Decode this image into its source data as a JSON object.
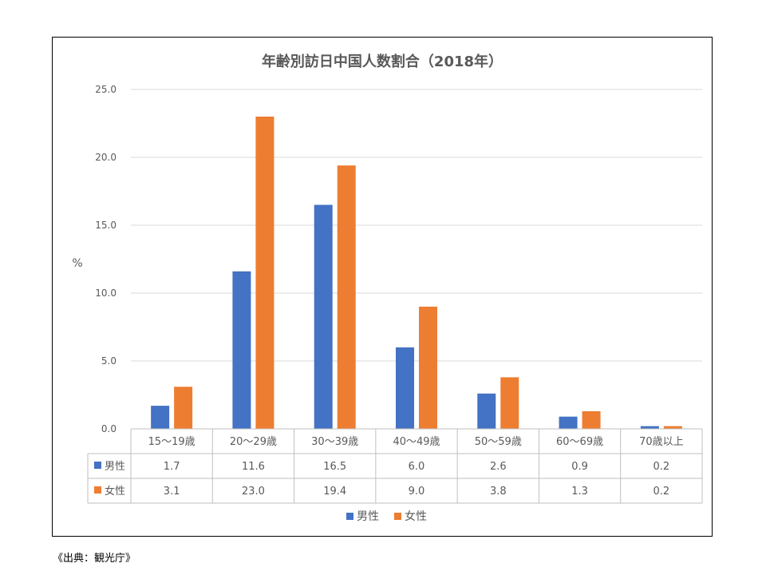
{
  "chart_data": {
    "type": "bar",
    "title": "年齢別訪日中国人数割合（2018年）",
    "ylabel": "%",
    "xlabel": "",
    "ylim": [
      0,
      25
    ],
    "yticks": [
      "0.0",
      "5.0",
      "10.0",
      "15.0",
      "20.0",
      "25.0"
    ],
    "grid": true,
    "legend_position": "bottom",
    "categories": [
      "15～19歳",
      "20～29歳",
      "30～39歳",
      "40～49歳",
      "50～59歳",
      "60～69歳",
      "70歳以上"
    ],
    "series": [
      {
        "name": "男性",
        "color": "#4472c4",
        "values": [
          1.7,
          11.6,
          16.5,
          6.0,
          2.6,
          0.9,
          0.2
        ],
        "labels": [
          "1.7",
          "11.6",
          "16.5",
          "6.0",
          "2.6",
          "0.9",
          "0.2"
        ]
      },
      {
        "name": "女性",
        "color": "#ed7d31",
        "values": [
          3.1,
          23.0,
          19.4,
          9.0,
          3.8,
          1.3,
          0.2
        ],
        "labels": [
          "3.1",
          "23.0",
          "19.4",
          "9.0",
          "3.8",
          "1.3",
          "0.2"
        ]
      }
    ],
    "data_table": true
  },
  "source": "《出典：観光庁》"
}
